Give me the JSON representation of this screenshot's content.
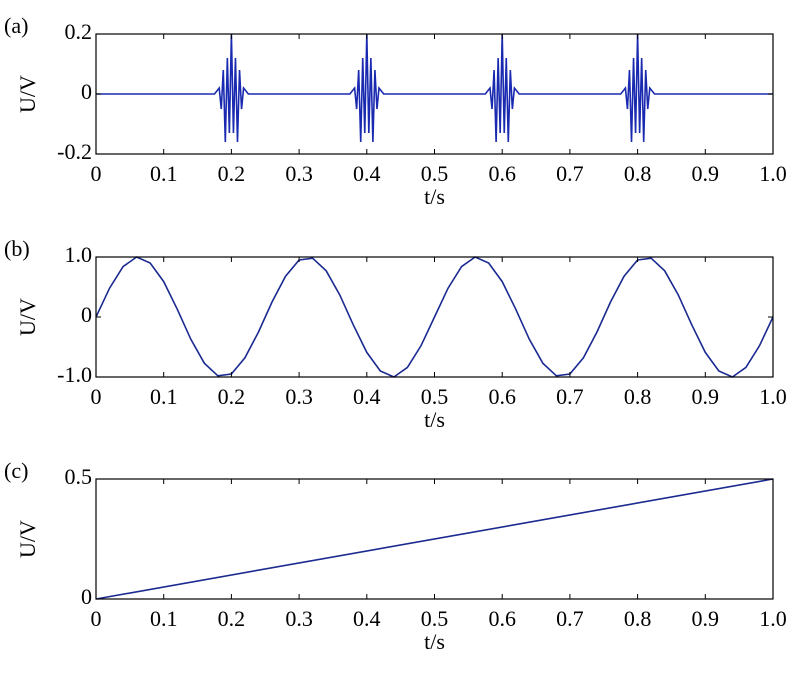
{
  "chart_data": [
    {
      "type": "line",
      "panel_label": "(a)",
      "ylabel": "U/V",
      "xlabel": "t/s",
      "color": "#1a2ab0",
      "x": [
        0,
        0.175,
        0.182,
        0.185,
        0.188,
        0.191,
        0.194,
        0.197,
        0.2,
        0.203,
        0.206,
        0.209,
        0.212,
        0.215,
        0.218,
        0.225,
        0.375,
        0.382,
        0.385,
        0.388,
        0.391,
        0.394,
        0.397,
        0.4,
        0.403,
        0.406,
        0.409,
        0.412,
        0.415,
        0.418,
        0.425,
        0.575,
        0.582,
        0.585,
        0.588,
        0.591,
        0.594,
        0.597,
        0.6,
        0.603,
        0.606,
        0.609,
        0.612,
        0.615,
        0.618,
        0.625,
        0.775,
        0.782,
        0.785,
        0.788,
        0.791,
        0.794,
        0.797,
        0.8,
        0.803,
        0.806,
        0.809,
        0.812,
        0.815,
        0.818,
        0.825,
        1
      ],
      "values": [
        0,
        0,
        0.02,
        -0.05,
        0.08,
        -0.16,
        0.12,
        -0.13,
        0.2,
        -0.13,
        0.12,
        -0.16,
        0.08,
        -0.05,
        0.02,
        0,
        0,
        0.02,
        -0.05,
        0.08,
        -0.16,
        0.12,
        -0.13,
        0.2,
        -0.13,
        0.12,
        -0.16,
        0.08,
        -0.05,
        0.02,
        0,
        0,
        0.02,
        -0.05,
        0.08,
        -0.16,
        0.12,
        -0.13,
        0.2,
        -0.13,
        0.12,
        -0.16,
        0.08,
        -0.05,
        0.02,
        0,
        0,
        0.02,
        -0.05,
        0.08,
        -0.16,
        0.12,
        -0.13,
        0.2,
        -0.13,
        0.12,
        -0.16,
        0.08,
        -0.05,
        0.02,
        0,
        0
      ],
      "xlim": [
        0,
        1
      ],
      "ylim": [
        -0.2,
        0.2
      ],
      "xticks": [
        0,
        0.1,
        0.2,
        0.3,
        0.4,
        0.5,
        0.6,
        0.7,
        0.8,
        0.9,
        {
          "value": 1,
          "label": "1.0"
        }
      ],
      "yticks": [
        -0.2,
        0,
        0.2
      ]
    },
    {
      "type": "line",
      "panel_label": "(b)",
      "ylabel": "U/V",
      "xlabel": "t/s",
      "color": "#1a2a90",
      "x": [
        0,
        0.02,
        0.04,
        0.06,
        0.08,
        0.1,
        0.12,
        0.14,
        0.16,
        0.18,
        0.2,
        0.22,
        0.24,
        0.26,
        0.28,
        0.3,
        0.32,
        0.34,
        0.36,
        0.38,
        0.4,
        0.42,
        0.44,
        0.46,
        0.48,
        0.5,
        0.52,
        0.54,
        0.56,
        0.58,
        0.6,
        0.62,
        0.64,
        0.66,
        0.68,
        0.7,
        0.72,
        0.74,
        0.76,
        0.78,
        0.8,
        0.82,
        0.84,
        0.86,
        0.88,
        0.9,
        0.92,
        0.94,
        0.96,
        0.98,
        1
      ],
      "values": [
        0,
        0.48,
        0.84,
        1,
        0.9,
        0.59,
        0.13,
        -0.37,
        -0.77,
        -0.98,
        -0.95,
        -0.68,
        -0.25,
        0.25,
        0.68,
        0.95,
        0.98,
        0.77,
        0.37,
        -0.13,
        -0.59,
        -0.9,
        -1,
        -0.84,
        -0.48,
        0,
        0.48,
        0.84,
        1,
        0.9,
        0.59,
        0.13,
        -0.37,
        -0.77,
        -0.98,
        -0.95,
        -0.68,
        -0.25,
        0.25,
        0.68,
        0.95,
        0.98,
        0.77,
        0.37,
        -0.13,
        -0.59,
        -0.9,
        -1,
        -0.84,
        -0.48,
        0
      ],
      "xlim": [
        0,
        1
      ],
      "ylim": [
        -1,
        1
      ],
      "xticks": [
        0,
        0.1,
        0.2,
        0.3,
        0.4,
        0.5,
        0.6,
        0.7,
        0.8,
        0.9,
        {
          "value": 1,
          "label": "1.0"
        }
      ],
      "yticks": [
        {
          "value": -1,
          "label": "-1.0"
        },
        0,
        {
          "value": 1,
          "label": "1.0"
        }
      ]
    },
    {
      "type": "line",
      "panel_label": "(c)",
      "ylabel": "U/V",
      "xlabel": "t/s",
      "color": "#1a2a90",
      "x": [
        0,
        1
      ],
      "values": [
        0,
        0.5
      ],
      "xlim": [
        0,
        1
      ],
      "ylim": [
        0,
        0.5
      ],
      "xticks": [
        0,
        0.1,
        0.2,
        0.3,
        0.4,
        0.5,
        0.6,
        0.7,
        0.8,
        0.9,
        {
          "value": 1,
          "label": "1.0"
        }
      ],
      "yticks": [
        0,
        0.5
      ]
    }
  ]
}
